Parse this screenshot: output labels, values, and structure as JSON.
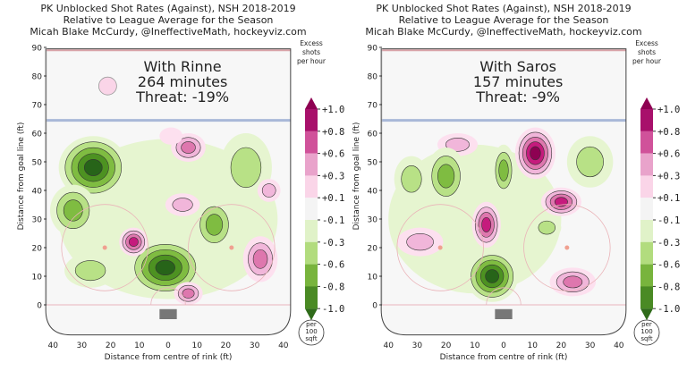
{
  "colorbar": {
    "title_lines": [
      "Excess",
      "shots",
      "per hour"
    ],
    "tick_labels": [
      "+1.0",
      "+0.8",
      "+0.6",
      "+0.3",
      "+0.1",
      "-0.1",
      "-0.3",
      "-0.6",
      "-0.8",
      "-1.0"
    ],
    "tick_values": [
      1.0,
      0.8,
      0.6,
      0.3,
      0.1,
      -0.1,
      -0.3,
      -0.6,
      -0.8,
      -1.0
    ],
    "colors": [
      "#8e0152",
      "#a8106b",
      "#d0529a",
      "#e9a3cb",
      "#fad5e8",
      "#f4f4f4",
      "#e0f2c8",
      "#b2dc7e",
      "#78b43d",
      "#4a8a24",
      "#2f6b1a"
    ],
    "unit_lines": [
      "per",
      "100",
      "sqft"
    ]
  },
  "chart_data": [
    {
      "type": "heatmap",
      "title_lines": [
        "PK Unblocked Shot Rates (Against), NSH 2018-2019",
        "Relative to League Average for the Season",
        "Micah Blake McCurdy, @IneffectiveMath, hockeyviz.com"
      ],
      "annotation": [
        "With Rinne",
        "264 minutes",
        "Threat: -19%"
      ],
      "xlabel": "Distance from centre of rink (ft)",
      "ylabel": "Distance from goal line (ft)",
      "x_tick_labels": [
        "40",
        "30",
        "20",
        "10",
        "0",
        "10",
        "20",
        "30",
        "40"
      ],
      "y_tick_labels": [
        "0",
        "10",
        "20",
        "30",
        "40",
        "50",
        "60",
        "70",
        "80",
        "90"
      ],
      "xlim": [
        -40,
        40
      ],
      "ylim": [
        0,
        90
      ],
      "hotspots": [
        {
          "x": 0,
          "y": 30,
          "rx": 38,
          "ry": 28,
          "value": -0.1
        },
        {
          "x": -26,
          "y": 48,
          "rx": 12,
          "ry": 11,
          "value": -1.0
        },
        {
          "x": -33,
          "y": 33,
          "rx": 8,
          "ry": 9,
          "value": -0.6
        },
        {
          "x": -1,
          "y": 13,
          "rx": 13,
          "ry": 10,
          "value": -1.0
        },
        {
          "x": 16,
          "y": 28,
          "rx": 7,
          "ry": 9,
          "value": -0.6
        },
        {
          "x": 27,
          "y": 48,
          "rx": 9,
          "ry": 12,
          "value": -0.3
        },
        {
          "x": -27,
          "y": 12,
          "rx": 9,
          "ry": 6,
          "value": -0.3
        },
        {
          "x": 7,
          "y": 55,
          "rx": 6,
          "ry": 5,
          "value": 0.6
        },
        {
          "x": 5,
          "y": 35,
          "rx": 6,
          "ry": 4,
          "value": 0.3
        },
        {
          "x": -12,
          "y": 22,
          "rx": 5,
          "ry": 5,
          "value": 0.8
        },
        {
          "x": 7,
          "y": 4,
          "rx": 5,
          "ry": 4,
          "value": 0.6
        },
        {
          "x": 32,
          "y": 16,
          "rx": 6,
          "ry": 8,
          "value": 0.6
        },
        {
          "x": 35,
          "y": 40,
          "rx": 4,
          "ry": 4,
          "value": 0.3
        },
        {
          "x": 1,
          "y": 59,
          "rx": 4,
          "ry": 3,
          "value": 0.1
        }
      ]
    },
    {
      "type": "heatmap",
      "title_lines": [
        "PK Unblocked Shot Rates (Against), NSH 2018-2019",
        "Relative to League Average for the Season",
        "Micah Blake McCurdy, @IneffectiveMath, hockeyviz.com"
      ],
      "annotation": [
        "With Saros",
        "157 minutes",
        "Threat: -9%"
      ],
      "xlabel": "Distance from centre of rink (ft)",
      "ylabel": "Distance from goal line (ft)",
      "x_tick_labels": [
        "40",
        "30",
        "20",
        "10",
        "0",
        "10",
        "20",
        "30",
        "40"
      ],
      "y_tick_labels": [
        "0",
        "10",
        "20",
        "30",
        "40",
        "50",
        "60",
        "70",
        "80",
        "90"
      ],
      "xlim": [
        -40,
        40
      ],
      "ylim": [
        0,
        90
      ],
      "hotspots": [
        {
          "x": -10,
          "y": 30,
          "rx": 30,
          "ry": 26,
          "value": -0.1
        },
        {
          "x": 11,
          "y": 53,
          "rx": 7,
          "ry": 9,
          "value": 1.0
        },
        {
          "x": 20,
          "y": 36,
          "rx": 7,
          "ry": 5,
          "value": 0.8
        },
        {
          "x": -6,
          "y": 28,
          "rx": 5,
          "ry": 8,
          "value": 0.8
        },
        {
          "x": -16,
          "y": 56,
          "rx": 7,
          "ry": 4,
          "value": 0.3
        },
        {
          "x": 24,
          "y": 8,
          "rx": 8,
          "ry": 5,
          "value": 0.6
        },
        {
          "x": -29,
          "y": 22,
          "rx": 8,
          "ry": 5,
          "value": 0.3
        },
        {
          "x": -4,
          "y": 10,
          "rx": 9,
          "ry": 9,
          "value": -1.0
        },
        {
          "x": -20,
          "y": 45,
          "rx": 7,
          "ry": 10,
          "value": -0.6
        },
        {
          "x": 0,
          "y": 47,
          "rx": 4,
          "ry": 9,
          "value": -0.6
        },
        {
          "x": -32,
          "y": 44,
          "rx": 6,
          "ry": 8,
          "value": -0.3
        },
        {
          "x": 30,
          "y": 50,
          "rx": 8,
          "ry": 9,
          "value": -0.3
        },
        {
          "x": 15,
          "y": 27,
          "rx": 5,
          "ry": 4,
          "value": -0.3
        }
      ]
    }
  ]
}
